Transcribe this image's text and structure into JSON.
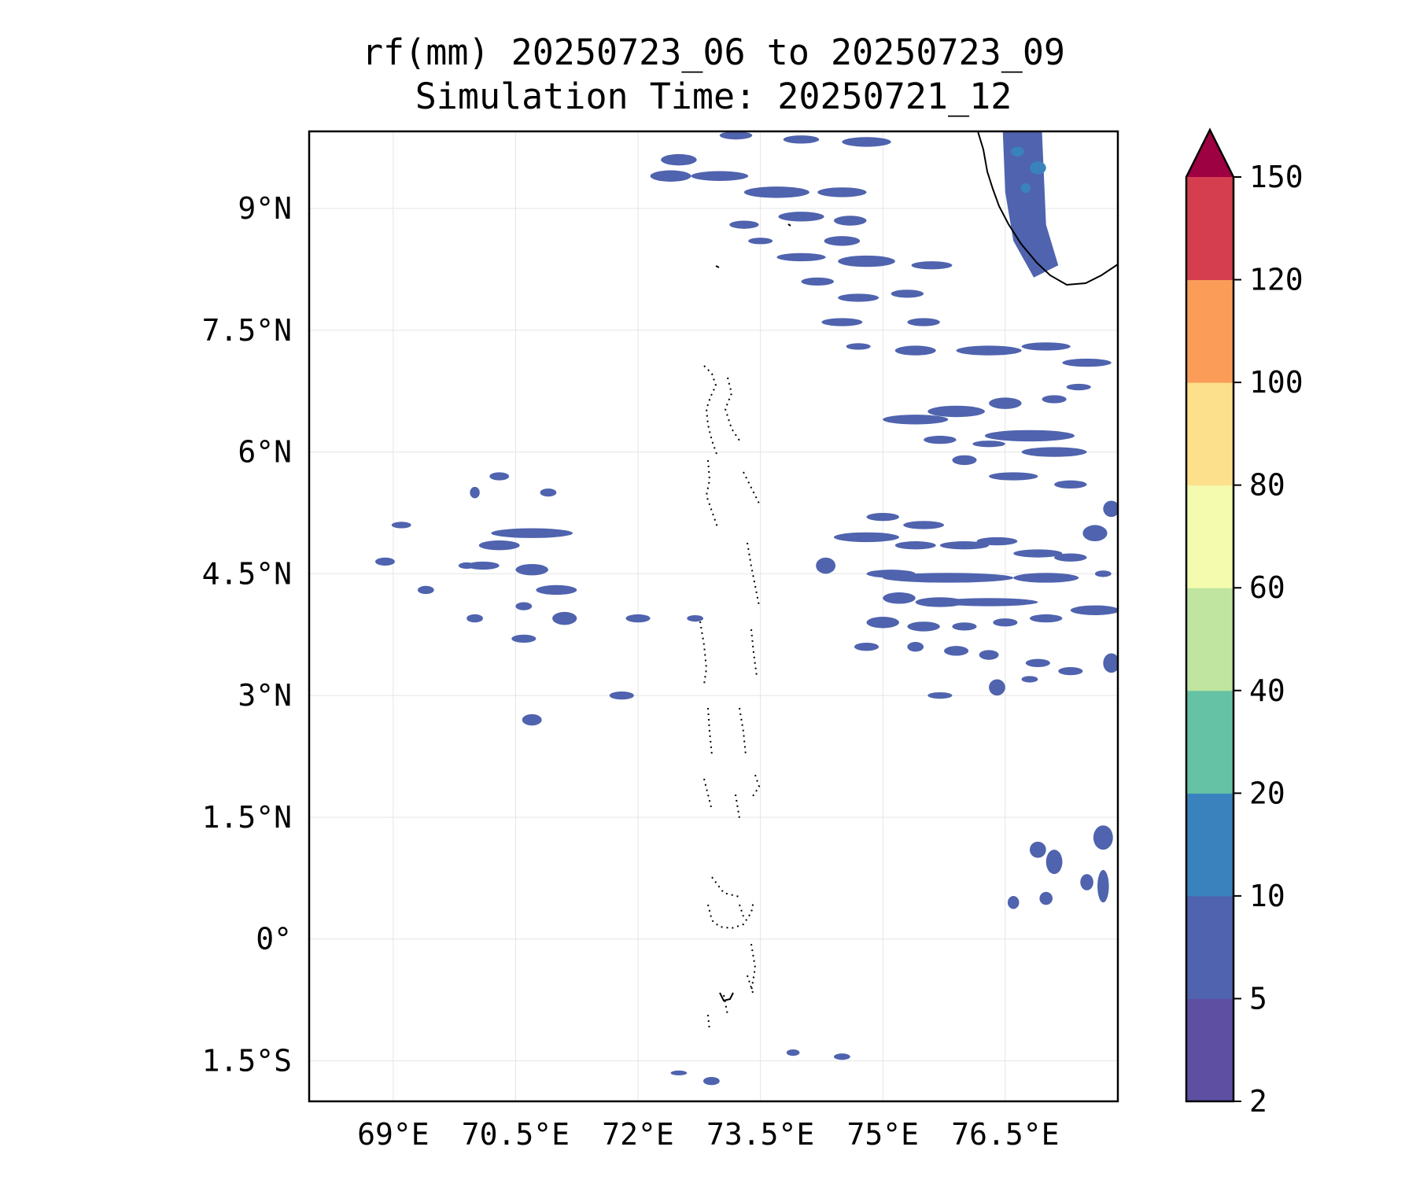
{
  "title": {
    "line1": "rf(mm) 20250723_06 to 20250723_09",
    "line2": "Simulation Time: 20250721_12"
  },
  "map": {
    "lon_range": [
      67.97,
      77.88
    ],
    "lat_range": [
      -2.0,
      9.95
    ],
    "x_ticks": [
      {
        "value": 69,
        "label": "69°E"
      },
      {
        "value": 70.5,
        "label": "70.5°E"
      },
      {
        "value": 72,
        "label": "72°E"
      },
      {
        "value": 73.5,
        "label": "73.5°E"
      },
      {
        "value": 75,
        "label": "75°E"
      },
      {
        "value": 76.5,
        "label": "76.5°E"
      }
    ],
    "y_ticks": [
      {
        "value": 9,
        "label": "9°N"
      },
      {
        "value": 7.5,
        "label": "7.5°N"
      },
      {
        "value": 6,
        "label": "6°N"
      },
      {
        "value": 4.5,
        "label": "4.5°N"
      },
      {
        "value": 3,
        "label": "3°N"
      },
      {
        "value": 1.5,
        "label": "1.5°N"
      },
      {
        "value": 0,
        "label": "0°"
      },
      {
        "value": -1.5,
        "label": "1.5°S"
      }
    ],
    "gridlines": true,
    "rain_cells_5_10": [
      [
        72.5,
        9.6,
        0.22,
        0.07
      ],
      [
        73.2,
        9.9,
        0.2,
        0.05
      ],
      [
        74.0,
        9.85,
        0.22,
        0.05
      ],
      [
        74.8,
        9.82,
        0.3,
        0.06
      ],
      [
        72.4,
        9.4,
        0.25,
        0.07
      ],
      [
        73.0,
        9.4,
        0.35,
        0.06
      ],
      [
        73.7,
        9.2,
        0.4,
        0.07
      ],
      [
        74.5,
        9.2,
        0.3,
        0.06
      ],
      [
        73.3,
        8.8,
        0.18,
        0.05
      ],
      [
        74.0,
        8.9,
        0.28,
        0.06
      ],
      [
        74.6,
        8.85,
        0.2,
        0.06
      ],
      [
        74.5,
        8.6,
        0.22,
        0.06
      ],
      [
        73.5,
        8.6,
        0.15,
        0.04
      ],
      [
        74.0,
        8.4,
        0.3,
        0.05
      ],
      [
        74.8,
        8.35,
        0.35,
        0.07
      ],
      [
        75.6,
        8.3,
        0.25,
        0.05
      ],
      [
        74.2,
        8.1,
        0.2,
        0.05
      ],
      [
        74.7,
        7.9,
        0.25,
        0.05
      ],
      [
        75.3,
        7.95,
        0.2,
        0.05
      ],
      [
        74.5,
        7.6,
        0.25,
        0.05
      ],
      [
        75.5,
        7.6,
        0.2,
        0.05
      ],
      [
        74.7,
        7.3,
        0.15,
        0.04
      ],
      [
        75.4,
        7.25,
        0.25,
        0.06
      ],
      [
        76.3,
        7.25,
        0.4,
        0.06
      ],
      [
        77.0,
        7.3,
        0.3,
        0.05
      ],
      [
        77.5,
        7.1,
        0.3,
        0.05
      ],
      [
        75.9,
        6.5,
        0.35,
        0.07
      ],
      [
        75.4,
        6.4,
        0.4,
        0.06
      ],
      [
        76.5,
        6.6,
        0.2,
        0.07
      ],
      [
        77.1,
        6.65,
        0.15,
        0.05
      ],
      [
        77.4,
        6.8,
        0.15,
        0.04
      ],
      [
        75.7,
        6.15,
        0.2,
        0.05
      ],
      [
        76.3,
        6.1,
        0.2,
        0.04
      ],
      [
        76.8,
        6.2,
        0.55,
        0.07
      ],
      [
        77.1,
        6.0,
        0.4,
        0.06
      ],
      [
        76.0,
        5.9,
        0.15,
        0.06
      ],
      [
        76.6,
        5.7,
        0.3,
        0.05
      ],
      [
        77.3,
        5.6,
        0.2,
        0.05
      ],
      [
        77.8,
        5.3,
        0.1,
        0.1
      ],
      [
        77.6,
        5.0,
        0.15,
        0.1
      ],
      [
        75.0,
        5.2,
        0.2,
        0.05
      ],
      [
        75.5,
        5.1,
        0.25,
        0.05
      ],
      [
        74.8,
        4.95,
        0.4,
        0.06
      ],
      [
        75.4,
        4.85,
        0.25,
        0.05
      ],
      [
        76.0,
        4.85,
        0.3,
        0.05
      ],
      [
        76.4,
        4.9,
        0.25,
        0.05
      ],
      [
        76.9,
        4.75,
        0.3,
        0.05
      ],
      [
        77.3,
        4.7,
        0.2,
        0.05
      ],
      [
        74.3,
        4.6,
        0.12,
        0.1
      ],
      [
        75.1,
        4.5,
        0.3,
        0.05
      ],
      [
        75.8,
        4.45,
        0.8,
        0.06
      ],
      [
        77.0,
        4.45,
        0.4,
        0.06
      ],
      [
        77.7,
        4.5,
        0.1,
        0.04
      ],
      [
        75.2,
        4.2,
        0.2,
        0.07
      ],
      [
        75.7,
        4.15,
        0.3,
        0.06
      ],
      [
        76.3,
        4.15,
        0.6,
        0.05
      ],
      [
        77.6,
        4.05,
        0.3,
        0.06
      ],
      [
        75.0,
        3.9,
        0.2,
        0.07
      ],
      [
        75.5,
        3.85,
        0.2,
        0.06
      ],
      [
        76.0,
        3.85,
        0.15,
        0.05
      ],
      [
        76.5,
        3.9,
        0.15,
        0.05
      ],
      [
        77.0,
        3.95,
        0.2,
        0.05
      ],
      [
        74.8,
        3.6,
        0.15,
        0.05
      ],
      [
        75.4,
        3.6,
        0.1,
        0.06
      ],
      [
        75.9,
        3.55,
        0.15,
        0.06
      ],
      [
        76.3,
        3.5,
        0.12,
        0.06
      ],
      [
        76.9,
        3.4,
        0.15,
        0.05
      ],
      [
        77.3,
        3.3,
        0.15,
        0.05
      ],
      [
        77.8,
        3.4,
        0.1,
        0.12
      ],
      [
        75.7,
        3.0,
        0.15,
        0.04
      ],
      [
        76.4,
        3.1,
        0.1,
        0.1
      ],
      [
        76.8,
        3.2,
        0.1,
        0.04
      ],
      [
        70.7,
        5.0,
        0.5,
        0.06
      ],
      [
        70.3,
        4.85,
        0.25,
        0.06
      ],
      [
        70.1,
        4.6,
        0.2,
        0.05
      ],
      [
        70.7,
        4.55,
        0.2,
        0.07
      ],
      [
        71.0,
        4.3,
        0.25,
        0.06
      ],
      [
        70.6,
        4.1,
        0.1,
        0.05
      ],
      [
        71.1,
        3.95,
        0.15,
        0.08
      ],
      [
        70.6,
        3.7,
        0.15,
        0.05
      ],
      [
        72.0,
        3.95,
        0.15,
        0.05
      ],
      [
        72.7,
        3.95,
        0.1,
        0.04
      ],
      [
        71.8,
        3.0,
        0.15,
        0.05
      ],
      [
        70.7,
        2.7,
        0.12,
        0.07
      ],
      [
        70.3,
        5.7,
        0.12,
        0.05
      ],
      [
        70.0,
        5.5,
        0.06,
        0.07
      ],
      [
        70.9,
        5.5,
        0.1,
        0.05
      ],
      [
        68.9,
        4.65,
        0.12,
        0.05
      ],
      [
        69.1,
        5.1,
        0.12,
        0.04
      ],
      [
        69.4,
        4.3,
        0.1,
        0.05
      ],
      [
        70.0,
        3.95,
        0.1,
        0.05
      ],
      [
        69.9,
        4.6,
        0.1,
        0.04
      ],
      [
        77.1,
        0.95,
        0.1,
        0.15
      ],
      [
        77.5,
        0.7,
        0.08,
        0.1
      ],
      [
        77.0,
        0.5,
        0.08,
        0.08
      ],
      [
        76.9,
        1.1,
        0.1,
        0.1
      ],
      [
        77.7,
        1.25,
        0.12,
        0.15
      ],
      [
        77.7,
        0.65,
        0.07,
        0.2
      ],
      [
        76.6,
        0.45,
        0.07,
        0.08
      ],
      [
        73.9,
        -1.4,
        0.08,
        0.04
      ],
      [
        74.5,
        -1.45,
        0.1,
        0.04
      ],
      [
        72.9,
        -1.75,
        0.1,
        0.05
      ],
      [
        72.5,
        -1.65,
        0.1,
        0.03
      ]
    ],
    "rain_cells_10_20": [
      [
        76.65,
        9.7,
        0.08,
        0.06
      ],
      [
        76.9,
        9.5,
        0.1,
        0.08
      ],
      [
        76.75,
        9.25,
        0.06,
        0.06
      ]
    ]
  },
  "colorbar": {
    "levels": [
      2,
      5,
      10,
      20,
      40,
      60,
      80,
      100,
      120,
      150
    ],
    "tick_labels": [
      "2",
      "5",
      "10",
      "20",
      "40",
      "60",
      "80",
      "100",
      "120",
      "150"
    ],
    "colors": [
      "#5e4fa2",
      "#4f63ae",
      "#3a82bd",
      "#66c2a5",
      "#bfe5a0",
      "#f4faae",
      "#fde08b",
      "#fb9d59",
      "#d53e4f"
    ],
    "extend_color": "#9e0142"
  }
}
